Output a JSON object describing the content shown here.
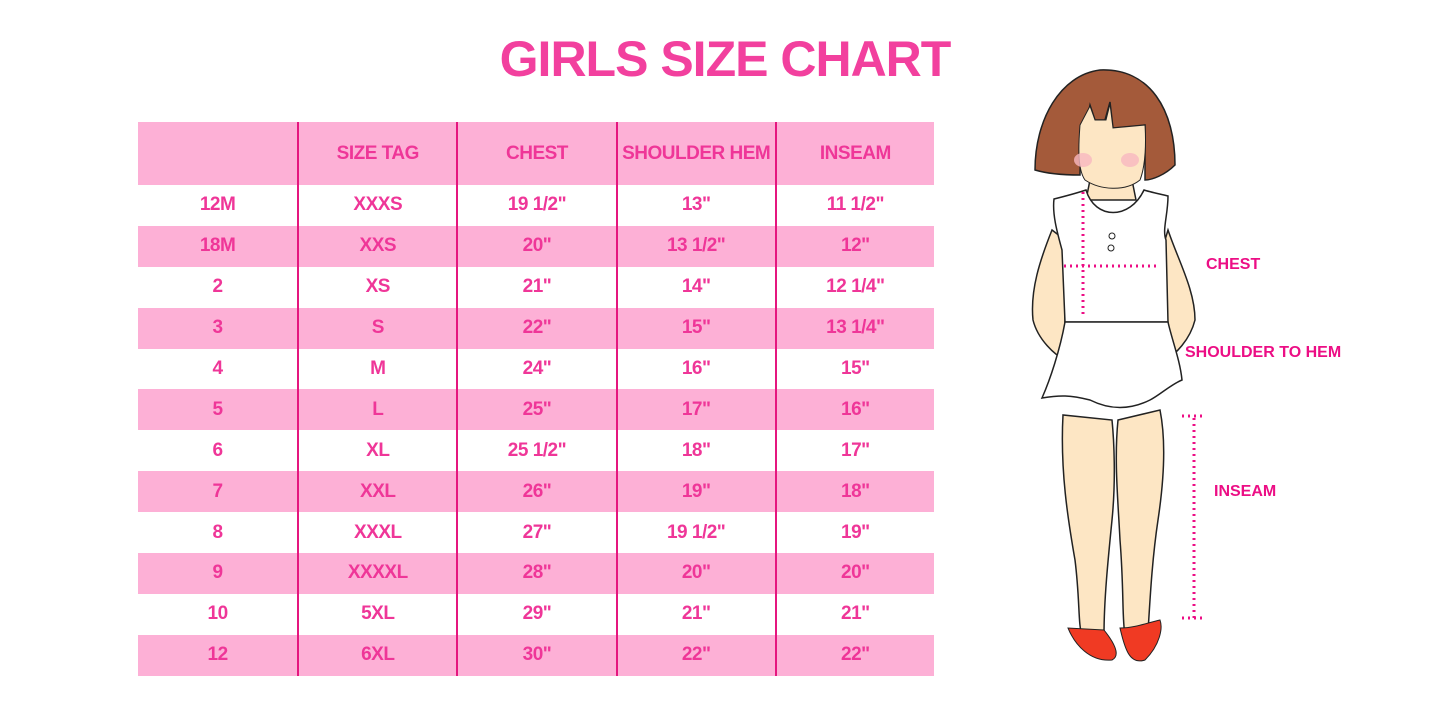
{
  "title": "GIRLS SIZE CHART",
  "table": {
    "headers": [
      "",
      "SIZE TAG",
      "CHEST",
      "SHOULDER HEM",
      "INSEAM"
    ],
    "rows": [
      [
        "12M",
        "XXXS",
        "19 1/2\"",
        "13\"",
        "11 1/2\""
      ],
      [
        "18M",
        "XXS",
        "20\"",
        "13 1/2\"",
        "12\""
      ],
      [
        "2",
        "XS",
        "21\"",
        "14\"",
        "12 1/4\""
      ],
      [
        "3",
        "S",
        "22\"",
        "15\"",
        "13 1/4\""
      ],
      [
        "4",
        "M",
        "24\"",
        "16\"",
        "15\""
      ],
      [
        "5",
        "L",
        "25\"",
        "17\"",
        "16\""
      ],
      [
        "6",
        "XL",
        "25 1/2\"",
        "18\"",
        "17\""
      ],
      [
        "7",
        "XXL",
        "26\"",
        "19\"",
        "18\""
      ],
      [
        "8",
        "XXXL",
        "27\"",
        "19 1/2\"",
        "19\""
      ],
      [
        "9",
        "XXXXL",
        "28\"",
        "20\"",
        "20\""
      ],
      [
        "10",
        "5XL",
        "29\"",
        "21\"",
        "21\""
      ],
      [
        "12",
        "6XL",
        "30\"",
        "22\"",
        "22\""
      ]
    ]
  },
  "illustration": {
    "labels": {
      "chest": "CHEST",
      "shoulder_to_hem": "SHOULDER TO HEM",
      "inseam": "INSEAM"
    }
  },
  "colors": {
    "accent": "#f2409e",
    "row_pink": "#fdb0d6",
    "divider": "#e5167f"
  }
}
